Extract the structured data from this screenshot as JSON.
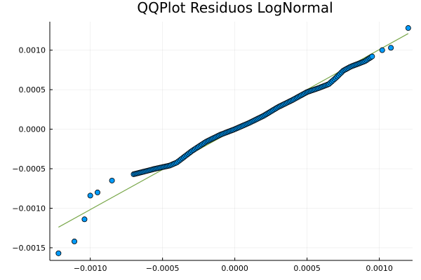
{
  "chart_data": {
    "type": "scatter",
    "title": "QQPlot Residuos LogNormal",
    "xlabel": "",
    "ylabel": "",
    "xlim": [
      -0.00128,
      0.00123
    ],
    "ylim": [
      -0.00166,
      0.00136
    ],
    "grid": true,
    "legend": "none",
    "x_ticks": [
      -0.001,
      -0.0005,
      0.0,
      0.0005,
      0.001
    ],
    "x_tick_labels": [
      "−0.0010",
      "−0.0005",
      "0.0000",
      "0.0005",
      "0.0010"
    ],
    "y_ticks": [
      -0.0015,
      -0.001,
      -0.0005,
      0.0,
      0.0005,
      0.001
    ],
    "y_tick_labels": [
      "−0.0015",
      "−0.0010",
      "−0.0005",
      "0.0000",
      "0.0005",
      "0.0010"
    ],
    "reference_line": {
      "x": [
        -0.00122,
        0.0012
      ],
      "y": [
        -0.00124,
        0.00121
      ],
      "color": "#7aa84b"
    },
    "series": [
      {
        "color": "#009af9",
        "quantile_anchors": {
          "x": [
            -0.00122,
            -0.00111,
            -0.00104,
            -0.001,
            -0.00095,
            -0.00085,
            -0.0007,
            -0.00055,
            -0.00045,
            -0.0004,
            -0.0003,
            -0.0002,
            -0.0001,
            0.0,
            0.0001,
            0.0002,
            0.0003,
            0.0004,
            0.0005,
            0.00058,
            0.00065,
            0.0007,
            0.00075,
            0.0008,
            0.0009,
            0.00095,
            0.00102,
            0.00108,
            0.0012
          ],
          "y": [
            -0.00157,
            -0.00142,
            -0.00114,
            -0.00084,
            -0.0008,
            -0.00065,
            -0.00057,
            -0.0005,
            -0.00046,
            -0.00042,
            -0.00028,
            -0.00016,
            -7e-05,
            0.0,
            8e-05,
            0.00017,
            0.00028,
            0.00037,
            0.00047,
            0.00052,
            0.00057,
            0.00065,
            0.00074,
            0.00079,
            0.00086,
            0.00092,
            0.001,
            0.00103,
            0.00128
          ]
        },
        "n_points": 180
      }
    ]
  }
}
